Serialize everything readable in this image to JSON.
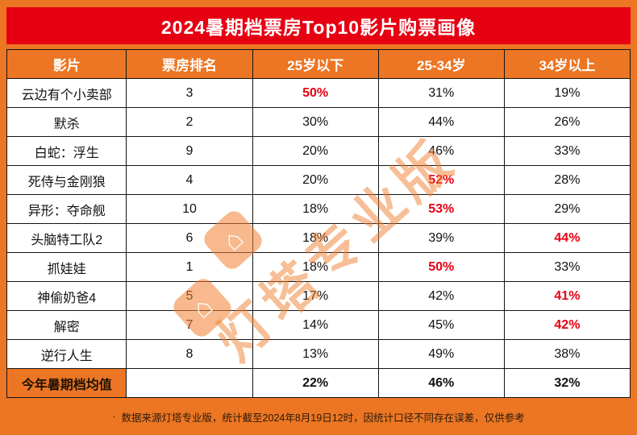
{
  "title": "2024暑期档票房Top10影片购票画像",
  "chart_data": {
    "type": "table",
    "title": "2024暑期档票房Top10影片购票画像",
    "columns": [
      "影片",
      "票房排名",
      "25岁以下",
      "25-34岁",
      "34岁以上"
    ],
    "rows": [
      {
        "cells": [
          "云边有个小卖部",
          "3",
          "50%",
          "31%",
          "19%"
        ],
        "red_index": 2
      },
      {
        "cells": [
          "默杀",
          "2",
          "30%",
          "44%",
          "26%"
        ],
        "red_index": null
      },
      {
        "cells": [
          "白蛇：浮生",
          "9",
          "20%",
          "46%",
          "33%"
        ],
        "red_index": null
      },
      {
        "cells": [
          "死侍与金刚狼",
          "4",
          "20%",
          "52%",
          "28%"
        ],
        "red_index": 3
      },
      {
        "cells": [
          "异形：夺命舰",
          "10",
          "18%",
          "53%",
          "29%"
        ],
        "red_index": 3
      },
      {
        "cells": [
          "头脑特工队2",
          "6",
          "18%",
          "39%",
          "44%"
        ],
        "red_index": 4
      },
      {
        "cells": [
          "抓娃娃",
          "1",
          "18%",
          "50%",
          "33%"
        ],
        "red_index": 3
      },
      {
        "cells": [
          "神偷奶爸4",
          "5",
          "17%",
          "42%",
          "41%"
        ],
        "red_index": 4
      },
      {
        "cells": [
          "解密",
          "7",
          "14%",
          "45%",
          "42%"
        ],
        "red_index": 4
      },
      {
        "cells": [
          "逆行人生",
          "8",
          "13%",
          "49%",
          "38%"
        ],
        "red_index": null
      }
    ],
    "summary": {
      "cells": [
        "今年暑期档均值",
        "",
        "22%",
        "46%",
        "32%"
      ]
    }
  },
  "footer": {
    "bullet": "·",
    "text": "数据来源灯塔专业版，统计截至2024年8月19日12时，因统计口径不同存在误差，仅供参考"
  },
  "watermark": {
    "text": "灯塔专业版"
  },
  "colors": {
    "frame_orange": "#ec7623",
    "title_red": "#e60012",
    "header_orange": "#ec7623",
    "highlight_red": "#e60012",
    "grid_line": "#141414",
    "cell_bg": "#ffffff"
  }
}
